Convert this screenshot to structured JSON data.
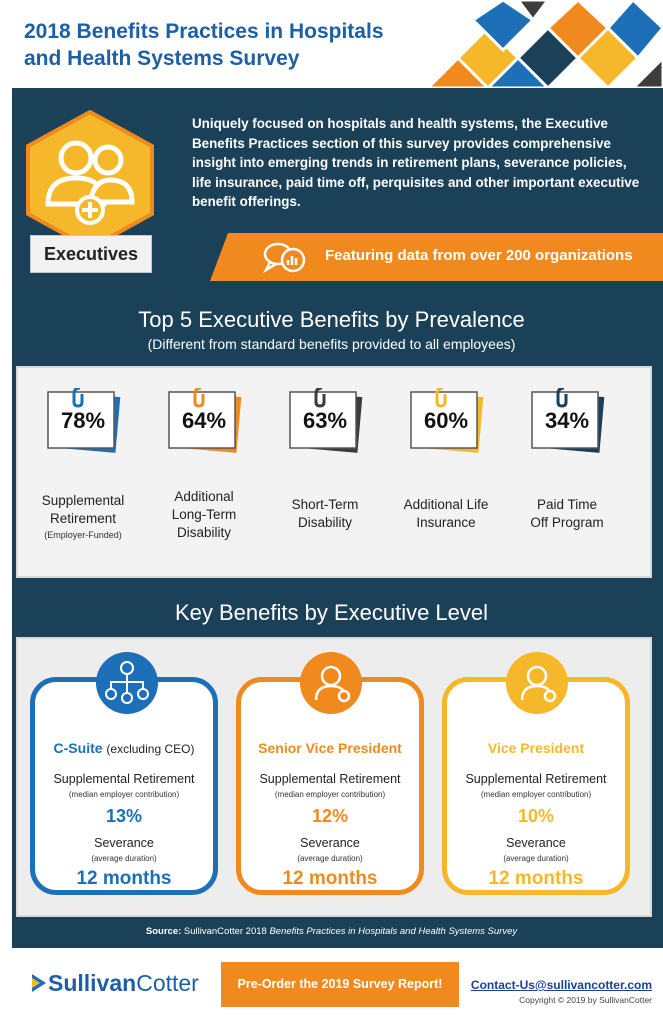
{
  "header": {
    "title_line1": "2018 Benefits Practices in Hospitals",
    "title_line2": "and Health Systems Survey"
  },
  "intro": {
    "badge_label": "Executives",
    "text": "Uniquely focused on hospitals and health systems, the Executive Benefits Practices section of this survey provides comprehensive insight into emerging trends in retirement plans, severance policies, life insurance, paid time off, perquisites and other important executive benefit offerings.",
    "banner": "Featuring data from over 200 organizations"
  },
  "top5": {
    "title": "Top 5 Executive Benefits by Prevalence",
    "subtitle": "(Different from standard benefits provided to all employees)",
    "items": [
      {
        "value": "78%",
        "label_line1": "Supplemental",
        "label_line2": "Retirement",
        "note": "(Employer-Funded)",
        "color": "#1d6fb8"
      },
      {
        "value": "64%",
        "label_line1": "Additional",
        "label_line2": "Long-Term",
        "label_line3": "Disability",
        "color": "#f08a1e"
      },
      {
        "value": "63%",
        "label_line1": "Short-Term",
        "label_line2": "Disability",
        "color": "#3d3d3d"
      },
      {
        "value": "60%",
        "label_line1": "Additional Life",
        "label_line2": "Insurance",
        "color": "#f5b82a"
      },
      {
        "value": "34%",
        "label_line1": "Paid Time",
        "label_line2": "Off Program",
        "color": "#1a4157"
      }
    ]
  },
  "key_benefits": {
    "title": "Key Benefits by Executive Level",
    "cards": [
      {
        "level": "C-Suite",
        "level_note": "(excluding CEO)",
        "ret_label": "Supplemental Retirement",
        "ret_note": "(median employer contribution)",
        "ret_value": "13%",
        "sev_label": "Severance",
        "sev_note": "(average duration)",
        "sev_value": "12 months",
        "color": "#1d6fb8"
      },
      {
        "level": "Senior Vice President",
        "ret_label": "Supplemental Retirement",
        "ret_note": "(median employer contribution)",
        "ret_value": "12%",
        "sev_label": "Severance",
        "sev_note": "(average duration)",
        "sev_value": "12 months",
        "color": "#f08a1e"
      },
      {
        "level": "Vice President",
        "ret_label": "Supplemental Retirement",
        "ret_note": "(median employer contribution)",
        "ret_value": "10%",
        "sev_label": "Severance",
        "sev_note": "(average duration)",
        "sev_value": "12 months",
        "color": "#f5b82a"
      }
    ]
  },
  "source": {
    "label": "Source:",
    "text_a": "SullivanCotter 2018",
    "text_b": "Benefits Practices in Hospitals and Health Systems Survey"
  },
  "footer": {
    "logo_a": "Sullivan",
    "logo_b": "Cotter",
    "cta": "Pre-Order the 2019 Survey Report!",
    "contact": "Contact-Us@sullivancotter.com",
    "copyright": "Copyright © 2019 by SullivanCotter"
  }
}
